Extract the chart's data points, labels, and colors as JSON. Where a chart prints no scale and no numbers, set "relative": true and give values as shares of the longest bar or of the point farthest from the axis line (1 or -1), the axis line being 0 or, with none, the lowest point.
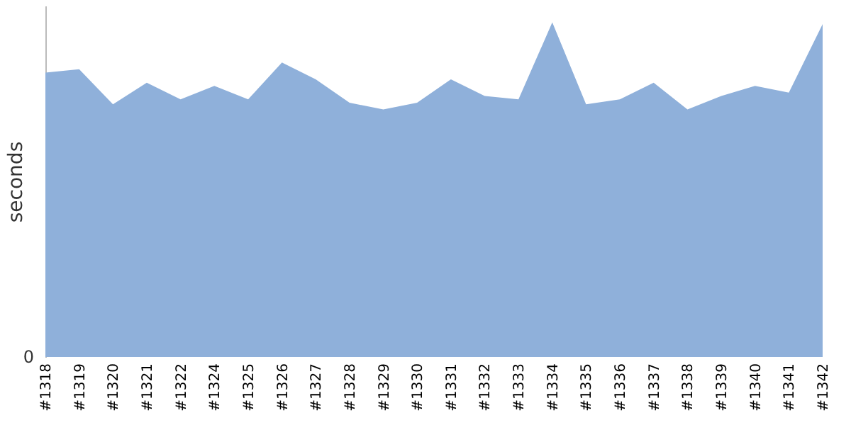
{
  "chart_data": {
    "type": "area",
    "relative": true,
    "ylabel": "seconds",
    "annotations": [
      "0"
    ],
    "color": "#8fb0da",
    "categories": [
      "#1318",
      "#1319",
      "#1320",
      "#1321",
      "#1322",
      "#1324",
      "#1325",
      "#1326",
      "#1327",
      "#1328",
      "#1329",
      "#1330",
      "#1331",
      "#1332",
      "#1333",
      "#1334",
      "#1335",
      "#1336",
      "#1337",
      "#1338",
      "#1339",
      "#1340",
      "#1341",
      "#1342"
    ],
    "values": [
      0.85,
      0.86,
      0.755,
      0.82,
      0.77,
      0.81,
      0.77,
      0.88,
      0.83,
      0.76,
      0.74,
      0.76,
      0.83,
      0.78,
      0.77,
      1,
      0.755,
      0.77,
      0.82,
      0.74,
      0.78,
      0.81,
      0.79,
      0.995
    ]
  }
}
